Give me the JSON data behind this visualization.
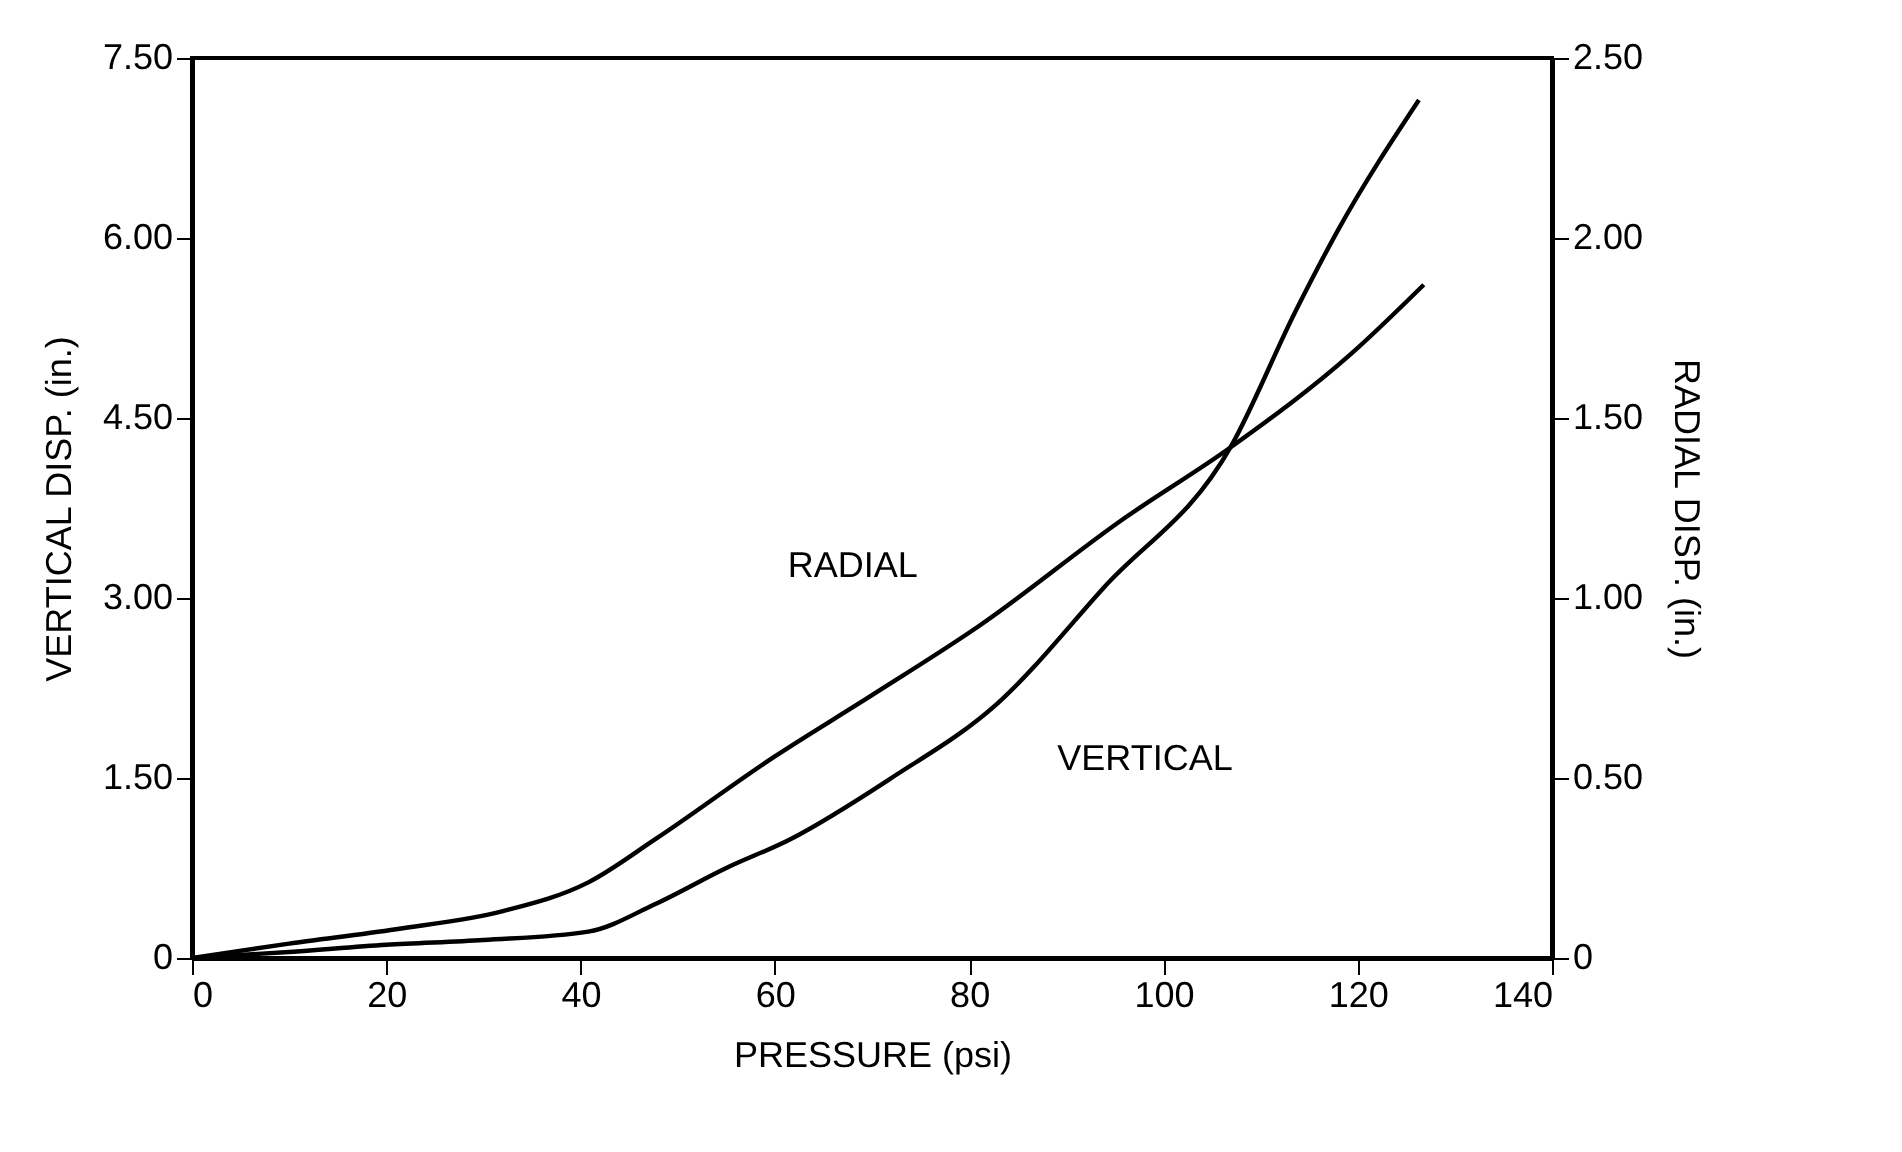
{
  "chart_data": {
    "type": "line",
    "xlabel": "PRESSURE (psi)",
    "ylabel": "VERTICAL DISP. (in.)",
    "y2label": "RADIAL DISP. (in.)",
    "xlim": [
      0,
      140
    ],
    "xticks": [
      0,
      20,
      40,
      60,
      80,
      100,
      120,
      140
    ],
    "ylim": [
      0,
      7.5
    ],
    "yticks": [
      0,
      {
        "value": 1.5,
        "label": "1.50"
      },
      {
        "value": 3,
        "label": "3.00"
      },
      {
        "value": 4.5,
        "label": "4.50"
      },
      {
        "value": 6,
        "label": "6.00"
      },
      {
        "value": 7.5,
        "label": "7.50"
      }
    ],
    "y2lim": [
      0,
      2.5
    ],
    "y2ticks": [
      0,
      {
        "value": 0.5,
        "label": "0.50"
      },
      {
        "value": 1,
        "label": "1.00"
      },
      {
        "value": 1.5,
        "label": "1.50"
      },
      {
        "value": 2,
        "label": "2.00"
      },
      {
        "value": 2.5,
        "label": "2.50"
      }
    ],
    "grid": false,
    "legend": false,
    "marker": "none",
    "line_style": "solid",
    "series": [
      {
        "name": "VERTICAL",
        "color": "#000000",
        "x": [
          0,
          10,
          20,
          30,
          40.8,
          47.7,
          55,
          61.6,
          72,
          82.9,
          93.9,
          107,
          113.6,
          118,
          126.3
        ],
        "values": [
          0,
          0.05,
          0.11,
          0.15,
          0.22,
          0.45,
          0.75,
          0.99,
          1.5,
          2.12,
          3.09,
          4.27,
          5.39,
          6.07,
          7.15
        ]
      },
      {
        "name": "RADIAL",
        "color": "#000000",
        "axis": "y2",
        "x": [
          0,
          10,
          21,
          32,
          40.8,
          47.7,
          60,
          70,
          80.9,
          95.9,
          107,
          119.4,
          126.8
        ],
        "values": [
          0,
          0.04,
          0.08,
          0.13,
          0.21,
          0.33,
          0.56,
          0.73,
          0.92,
          1.22,
          1.42,
          1.68,
          1.87
        ]
      }
    ]
  }
}
